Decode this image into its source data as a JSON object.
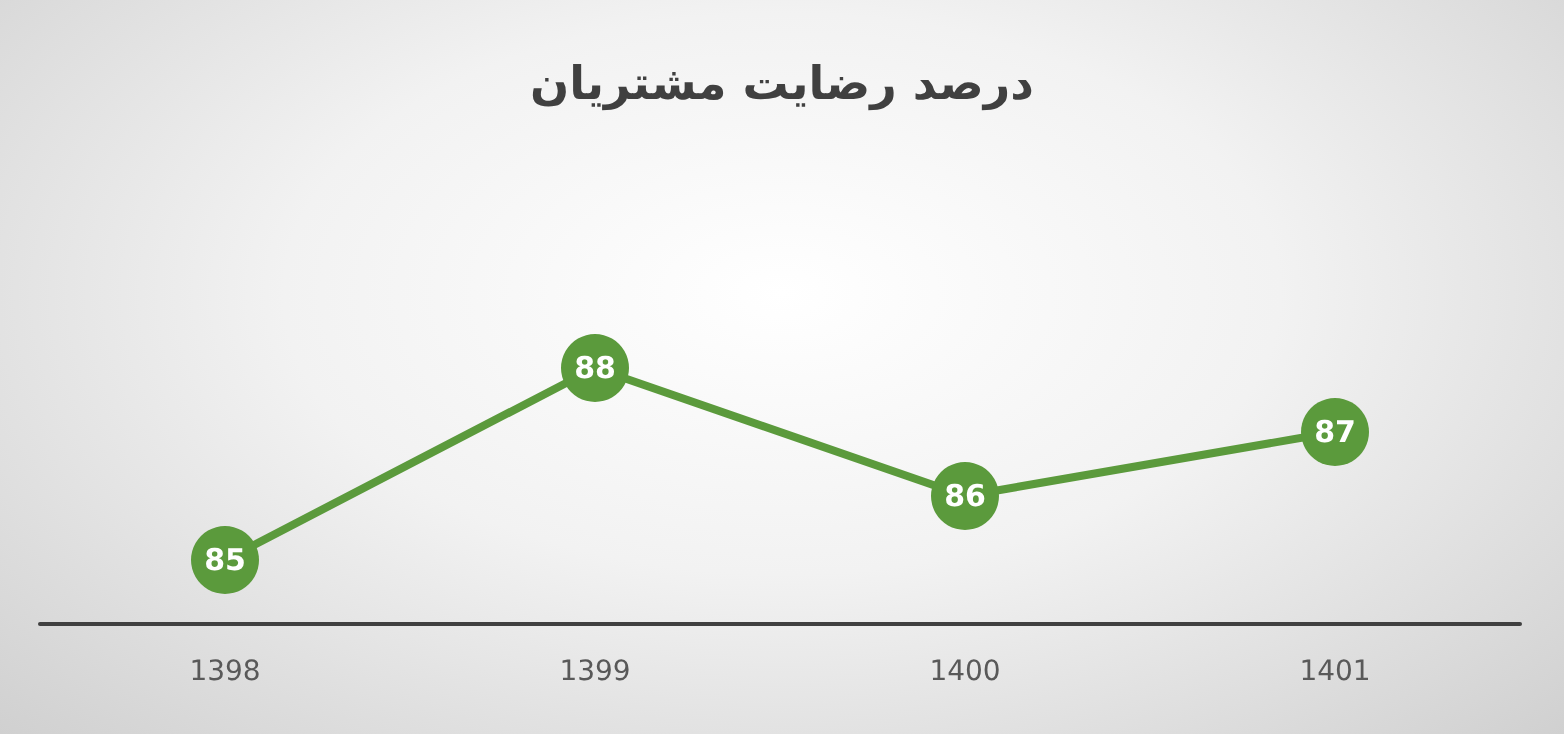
{
  "chart_data": {
    "type": "line",
    "title": "درصد رضایت مشتریان",
    "categories": [
      "1398",
      "1399",
      "1400",
      "1401"
    ],
    "series": [
      {
        "color": "#5b9a3c",
        "values": [
          85,
          88,
          86,
          87
        ]
      }
    ],
    "tick_labels": "x",
    "data_labels": true,
    "marker": "circle",
    "line_style": "solid",
    "grid": false
  }
}
